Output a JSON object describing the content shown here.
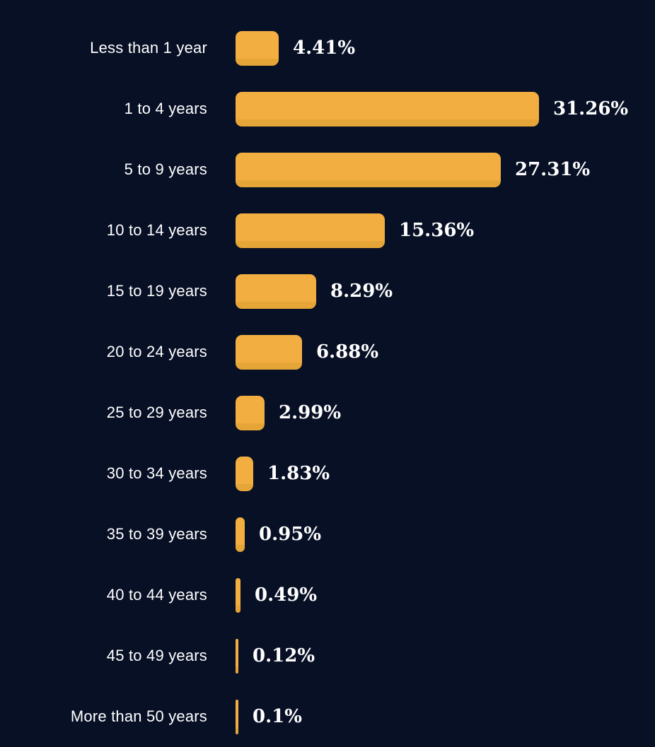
{
  "chart_data": {
    "type": "bar",
    "orientation": "horizontal",
    "title": "",
    "xlabel": "",
    "ylabel": "",
    "grid": false,
    "legend": false,
    "xlim": [
      0,
      31.26
    ],
    "categories": [
      "Less than 1 year",
      "1 to 4 years",
      "5 to 9 years",
      "10 to 14 years",
      "15 to 19 years",
      "20 to 24 years",
      "25 to 29 years",
      "30 to 34 years",
      "35 to 39 years",
      "40 to 44 years",
      "45 to 49 years",
      "More than 50 years"
    ],
    "values": [
      4.41,
      31.26,
      27.31,
      15.36,
      8.29,
      6.88,
      2.99,
      1.83,
      0.95,
      0.49,
      0.12,
      0.1
    ],
    "display_values": [
      "4.41%",
      "31.26%",
      "27.31%",
      "15.36%",
      "8.29%",
      "6.88%",
      "2.99%",
      "1.83%",
      "0.95%",
      "0.49%",
      "0.12%",
      "0.1%"
    ],
    "colors": {
      "background": "#081026",
      "bar_fill": "#f2ae41",
      "bar_bottom_shade": "#e6a637",
      "label_text": "#ffffff",
      "value_text": "#ffffff"
    }
  }
}
